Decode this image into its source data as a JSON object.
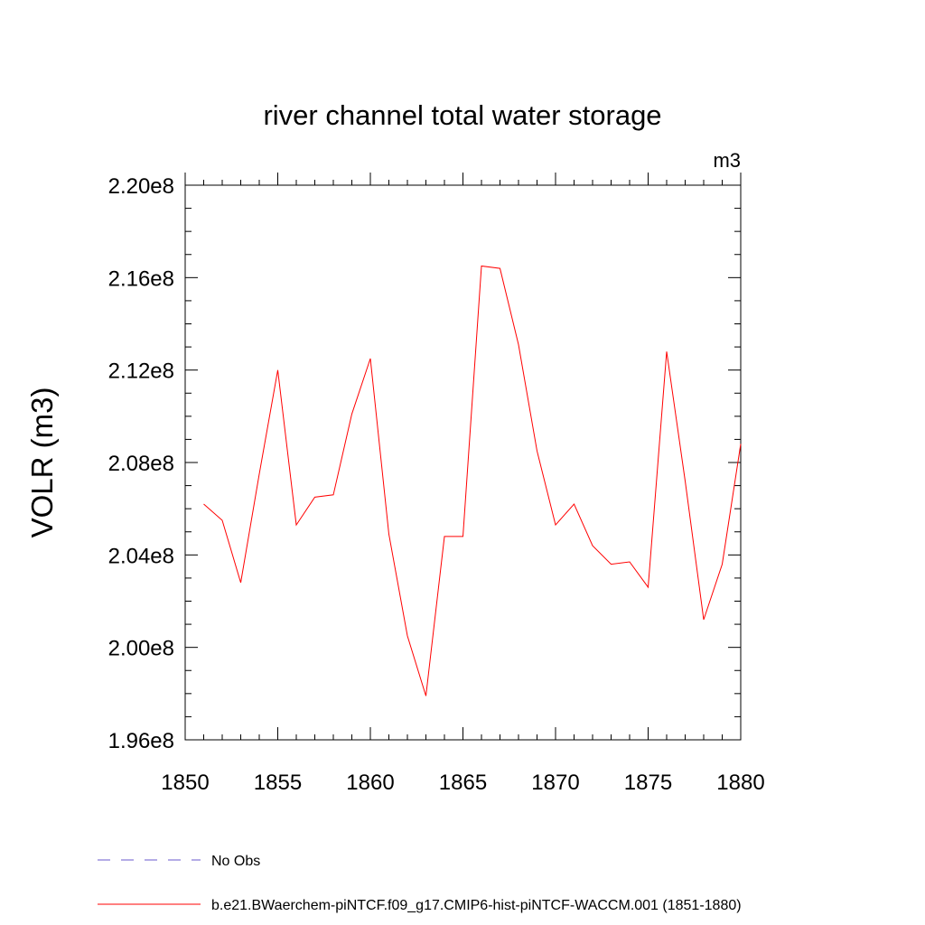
{
  "chart_data": {
    "type": "line",
    "title": "river channel total water storage",
    "units_label": "m3",
    "ylabel": "VOLR  (m3)",
    "xlabel": "",
    "xlim": [
      1850,
      1880
    ],
    "ylim": [
      196000000,
      220000000
    ],
    "x_ticks": [
      1850,
      1855,
      1860,
      1865,
      1870,
      1875,
      1880
    ],
    "x_tick_labels": [
      "1850",
      "1855",
      "1860",
      "1865",
      "1870",
      "1875",
      "1880"
    ],
    "y_ticks": [
      196000000,
      200000000,
      204000000,
      208000000,
      212000000,
      216000000,
      220000000
    ],
    "y_tick_labels": [
      "1.96e8",
      "2.00e8",
      "2.04e8",
      "2.08e8",
      "2.12e8",
      "2.16e8",
      "2.20e8"
    ],
    "grid": false,
    "legend_position": "bottom",
    "series": [
      {
        "name": "b.e21.BWaerchem-piNTCF.f09_g17.CMIP6-hist-piNTCF-WACCM.001 (1851-1880)",
        "color": "#ff0000",
        "style": "solid",
        "x": [
          1851,
          1852,
          1853,
          1854,
          1855,
          1856,
          1857,
          1858,
          1859,
          1860,
          1861,
          1862,
          1863,
          1864,
          1865,
          1866,
          1867,
          1868,
          1869,
          1870,
          1871,
          1872,
          1873,
          1874,
          1875,
          1876,
          1877,
          1878,
          1879,
          1880
        ],
        "y": [
          206200000,
          205500000,
          202800000,
          207500000,
          212000000,
          205300000,
          206500000,
          206600000,
          210100000,
          212500000,
          204900000,
          200500000,
          197900000,
          204800000,
          204800000,
          216500000,
          216400000,
          213100000,
          208500000,
          205300000,
          206200000,
          204400000,
          203600000,
          203700000,
          202600000,
          212800000,
          207200000,
          201200000,
          203600000,
          208800000
        ]
      }
    ],
    "legend": [
      {
        "label": "No Obs",
        "color": "#6a5acd",
        "style": "dashed"
      },
      {
        "label": "b.e21.BWaerchem-piNTCF.f09_g17.CMIP6-hist-piNTCF-WACCM.001 (1851-1880)",
        "color": "#ff0000",
        "style": "solid"
      }
    ]
  }
}
